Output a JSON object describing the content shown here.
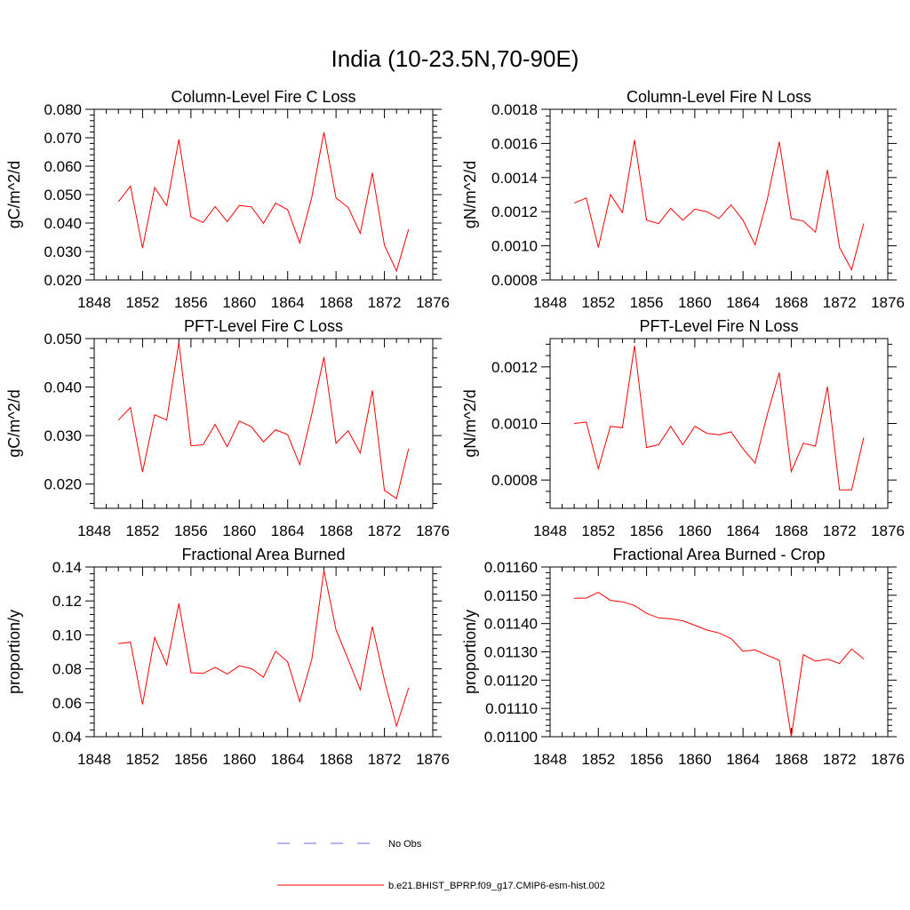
{
  "figure": {
    "title": "India (10-23.5N,70-90E)"
  },
  "legend": {
    "entries": [
      {
        "label": "No Obs",
        "color": "#6a6ae0",
        "style": "dashed"
      },
      {
        "label": "b.e21.BHIST_BPRP.f09_g17.CMIP6-esm-hist.002",
        "color": "#ff0000",
        "style": "solid"
      }
    ]
  },
  "chart_data": [
    {
      "type": "line",
      "title": "Column-Level Fire C Loss",
      "xlabel": "",
      "ylabel": "gC/m^2/d",
      "xlim": [
        1848,
        1876
      ],
      "ylim": [
        0.02,
        0.08
      ],
      "xticks": [
        1848,
        1852,
        1856,
        1860,
        1864,
        1868,
        1872,
        1876
      ],
      "xtick_labels": [
        "1848",
        "1852",
        "1856",
        "1860",
        "1864",
        "1868",
        "1872",
        "1876"
      ],
      "yticks": [
        0.02,
        0.03,
        0.04,
        0.05,
        0.06,
        0.07,
        0.08
      ],
      "ytick_labels": [
        "0.020",
        "0.030",
        "0.040",
        "0.050",
        "0.060",
        "0.070",
        "0.080"
      ],
      "grid": false,
      "x": [
        1850,
        1851,
        1852,
        1853,
        1854,
        1855,
        1856,
        1857,
        1858,
        1859,
        1860,
        1861,
        1862,
        1863,
        1864,
        1865,
        1866,
        1867,
        1868,
        1869,
        1870,
        1871,
        1872,
        1873,
        1874
      ],
      "series": [
        {
          "name": "b.e21.BHIST_BPRP.f09_g17.CMIP6-esm-hist.002",
          "color": "#ff0000",
          "values": [
            0.0475,
            0.053,
            0.0312,
            0.0525,
            0.0461,
            0.0694,
            0.0422,
            0.0402,
            0.0458,
            0.0405,
            0.0462,
            0.0457,
            0.0399,
            0.047,
            0.0447,
            0.033,
            0.0492,
            0.0719,
            0.0488,
            0.0455,
            0.0364,
            0.0577,
            0.0322,
            0.0232,
            0.0378
          ]
        }
      ]
    },
    {
      "type": "line",
      "title": "Column-Level Fire N Loss",
      "xlabel": "",
      "ylabel": "gN/m^2/d",
      "xlim": [
        1848,
        1876
      ],
      "ylim": [
        0.0008,
        0.0018
      ],
      "xticks": [
        1848,
        1852,
        1856,
        1860,
        1864,
        1868,
        1872,
        1876
      ],
      "xtick_labels": [
        "1848",
        "1852",
        "1856",
        "1860",
        "1864",
        "1868",
        "1872",
        "1876"
      ],
      "yticks": [
        0.0008,
        0.001,
        0.0012,
        0.0014,
        0.0016,
        0.0018
      ],
      "ytick_labels": [
        "0.0008",
        "0.0010",
        "0.0012",
        "0.0014",
        "0.0016",
        "0.0018"
      ],
      "grid": false,
      "x": [
        1850,
        1851,
        1852,
        1853,
        1854,
        1855,
        1856,
        1857,
        1858,
        1859,
        1860,
        1861,
        1862,
        1863,
        1864,
        1865,
        1866,
        1867,
        1868,
        1869,
        1870,
        1871,
        1872,
        1873,
        1874
      ],
      "series": [
        {
          "name": "b.e21.BHIST_BPRP.f09_g17.CMIP6-esm-hist.002",
          "color": "#ff0000",
          "values": [
            0.00125,
            0.00128,
            0.00099,
            0.0013,
            0.001195,
            0.00162,
            0.00115,
            0.00113,
            0.00122,
            0.00115,
            0.001215,
            0.0012,
            0.00116,
            0.00124,
            0.00115,
            0.001005,
            0.00127,
            0.00161,
            0.00116,
            0.001145,
            0.00108,
            0.001445,
            0.00099,
            0.00086,
            0.00113
          ]
        }
      ]
    },
    {
      "type": "line",
      "title": "PFT-Level Fire C Loss",
      "xlabel": "",
      "ylabel": "gC/m^2/d",
      "xlim": [
        1848,
        1876
      ],
      "ylim": [
        0.015,
        0.05
      ],
      "xticks": [
        1848,
        1852,
        1856,
        1860,
        1864,
        1868,
        1872,
        1876
      ],
      "xtick_labels": [
        "1848",
        "1852",
        "1856",
        "1860",
        "1864",
        "1868",
        "1872",
        "1876"
      ],
      "yticks": [
        0.02,
        0.03,
        0.04,
        0.05
      ],
      "ytick_labels": [
        "0.020",
        "0.030",
        "0.040",
        "0.050"
      ],
      "grid": false,
      "x": [
        1850,
        1851,
        1852,
        1853,
        1854,
        1855,
        1856,
        1857,
        1858,
        1859,
        1860,
        1861,
        1862,
        1863,
        1864,
        1865,
        1866,
        1867,
        1868,
        1869,
        1870,
        1871,
        1872,
        1873,
        1874
      ],
      "series": [
        {
          "name": "b.e21.BHIST_BPRP.f09_g17.CMIP6-esm-hist.002",
          "color": "#ff0000",
          "values": [
            0.0332,
            0.0358,
            0.0225,
            0.0343,
            0.0332,
            0.0492,
            0.0279,
            0.0281,
            0.0323,
            0.0277,
            0.033,
            0.0318,
            0.0287,
            0.0312,
            0.0302,
            0.024,
            0.0345,
            0.0462,
            0.0284,
            0.031,
            0.0264,
            0.0393,
            0.0187,
            0.017,
            0.0273
          ]
        }
      ]
    },
    {
      "type": "line",
      "title": "PFT-Level Fire N Loss",
      "xlabel": "",
      "ylabel": "gN/m^2/d",
      "xlim": [
        1848,
        1876
      ],
      "ylim": [
        0.0007,
        0.0013
      ],
      "xticks": [
        1848,
        1852,
        1856,
        1860,
        1864,
        1868,
        1872,
        1876
      ],
      "xtick_labels": [
        "1848",
        "1852",
        "1856",
        "1860",
        "1864",
        "1868",
        "1872",
        "1876"
      ],
      "yticks": [
        0.0008,
        0.001,
        0.0012
      ],
      "ytick_labels": [
        "0.0008",
        "0.0010",
        "0.0012"
      ],
      "grid": false,
      "x": [
        1850,
        1851,
        1852,
        1853,
        1854,
        1855,
        1856,
        1857,
        1858,
        1859,
        1860,
        1861,
        1862,
        1863,
        1864,
        1865,
        1866,
        1867,
        1868,
        1869,
        1870,
        1871,
        1872,
        1873,
        1874
      ],
      "series": [
        {
          "name": "b.e21.BHIST_BPRP.f09_g17.CMIP6-esm-hist.002",
          "color": "#ff0000",
          "values": [
            0.001,
            0.001005,
            0.00084,
            0.00099,
            0.000985,
            0.001275,
            0.000915,
            0.000925,
            0.00099,
            0.000925,
            0.00099,
            0.000965,
            0.00096,
            0.00097,
            0.00091,
            0.00086,
            0.00103,
            0.00118,
            0.00083,
            0.00093,
            0.00092,
            0.00113,
            0.000765,
            0.000765,
            0.00095
          ]
        }
      ]
    },
    {
      "type": "line",
      "title": "Fractional Area Burned",
      "xlabel": "",
      "ylabel": "proportion/y",
      "xlim": [
        1848,
        1876
      ],
      "ylim": [
        0.04,
        0.14
      ],
      "xticks": [
        1848,
        1852,
        1856,
        1860,
        1864,
        1868,
        1872,
        1876
      ],
      "xtick_labels": [
        "1848",
        "1852",
        "1856",
        "1860",
        "1864",
        "1868",
        "1872",
        "1876"
      ],
      "yticks": [
        0.04,
        0.06,
        0.08,
        0.1,
        0.12,
        0.14
      ],
      "ytick_labels": [
        "0.04",
        "0.06",
        "0.08",
        "0.10",
        "0.12",
        "0.14"
      ],
      "grid": false,
      "x": [
        1850,
        1851,
        1852,
        1853,
        1854,
        1855,
        1856,
        1857,
        1858,
        1859,
        1860,
        1861,
        1862,
        1863,
        1864,
        1865,
        1866,
        1867,
        1868,
        1869,
        1870,
        1871,
        1872,
        1873,
        1874
      ],
      "series": [
        {
          "name": "b.e21.BHIST_BPRP.f09_g17.CMIP6-esm-hist.002",
          "color": "#ff0000",
          "values": [
            0.0948,
            0.0957,
            0.059,
            0.0985,
            0.0823,
            0.1185,
            0.0777,
            0.0773,
            0.0809,
            0.0769,
            0.0818,
            0.0801,
            0.0751,
            0.0903,
            0.0841,
            0.0607,
            0.0856,
            0.138,
            0.103,
            0.0855,
            0.0677,
            0.1048,
            0.0733,
            0.0463,
            0.0688
          ]
        }
      ]
    },
    {
      "type": "line",
      "title": "Fractional Area Burned - Crop",
      "xlabel": "",
      "ylabel": "proportion/y",
      "xlim": [
        1848,
        1876
      ],
      "ylim": [
        0.011,
        0.0116
      ],
      "xticks": [
        1848,
        1852,
        1856,
        1860,
        1864,
        1868,
        1872,
        1876
      ],
      "xtick_labels": [
        "1848",
        "1852",
        "1856",
        "1860",
        "1864",
        "1868",
        "1872",
        "1876"
      ],
      "yticks": [
        0.011,
        0.0111,
        0.0112,
        0.0113,
        0.0114,
        0.0115,
        0.0116
      ],
      "ytick_labels": [
        "0.01100",
        "0.01110",
        "0.01120",
        "0.01130",
        "0.01140",
        "0.01150",
        "0.01160"
      ],
      "grid": false,
      "x": [
        1850,
        1851,
        1852,
        1853,
        1854,
        1855,
        1856,
        1857,
        1858,
        1859,
        1860,
        1861,
        1862,
        1863,
        1864,
        1865,
        1866,
        1867,
        1868,
        1869,
        1870,
        1871,
        1872,
        1873,
        1874
      ],
      "series": [
        {
          "name": "b.e21.BHIST_BPRP.f09_g17.CMIP6-esm-hist.002",
          "color": "#ff0000",
          "values": [
            0.011489,
            0.01149,
            0.01151,
            0.011482,
            0.011477,
            0.011464,
            0.011436,
            0.01142,
            0.011417,
            0.01141,
            0.011394,
            0.011377,
            0.011367,
            0.011347,
            0.011302,
            0.011307,
            0.011288,
            0.01127,
            0.011,
            0.01129,
            0.011267,
            0.011274,
            0.011259,
            0.01131,
            0.011275
          ]
        }
      ]
    }
  ]
}
